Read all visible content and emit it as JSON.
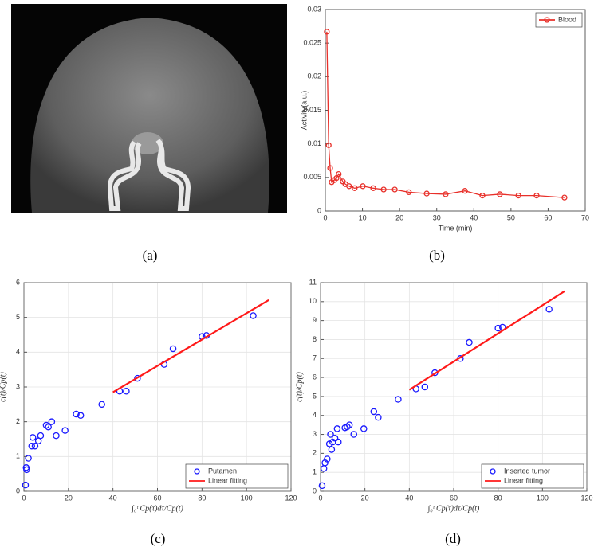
{
  "image_panel": {
    "caption": "(a)"
  },
  "chart_data": [
    {
      "type": "line",
      "caption": "(b)",
      "xlabel": "Time (min)",
      "ylabel": "Activity(a.u.)",
      "xlim": [
        0,
        70
      ],
      "xticks": [
        0,
        10,
        20,
        30,
        40,
        50,
        60,
        70
      ],
      "ylim": [
        0,
        0.03
      ],
      "yticks": [
        0,
        0.005,
        0.01,
        0.015,
        0.02,
        0.025,
        0.03
      ],
      "grid": false,
      "legend": "upper right",
      "series": [
        {
          "name": "Blood",
          "color": "#e8302a",
          "mode": "lines+markers",
          "x": [
            0.4,
            0.9,
            1.3,
            1.7,
            2.4,
            3.0,
            3.6,
            4.7,
            5.4,
            6.4,
            7.9,
            10.1,
            12.9,
            15.7,
            18.7,
            22.5,
            27.3,
            32.4,
            37.6,
            42.3,
            47,
            52,
            56.9,
            64.4
          ],
          "values": [
            0.0267,
            0.0098,
            0.0064,
            0.0043,
            0.0046,
            0.0049,
            0.0055,
            0.0044,
            0.004,
            0.0037,
            0.0034,
            0.0037,
            0.0034,
            0.0032,
            0.0032,
            0.0028,
            0.0026,
            0.0025,
            0.003,
            0.0023,
            0.0025,
            0.0023,
            0.0023,
            0.002
          ]
        }
      ]
    },
    {
      "type": "scatter",
      "caption": "(c)",
      "xlabel": "∫₀ᵗ Cp(τ)dτ/Cp(t)",
      "ylabel": "c(t)/Cp(t)",
      "xlim": [
        0,
        120
      ],
      "xticks": [
        0,
        20,
        40,
        60,
        80,
        100,
        120
      ],
      "ylim": [
        0,
        6
      ],
      "yticks": [
        0,
        1,
        2,
        3,
        4,
        5,
        6
      ],
      "grid": true,
      "legend": "lower right",
      "series": [
        {
          "name": "Putamen",
          "color": "#1a1aff",
          "mode": "markers",
          "x": [
            0.7,
            1,
            1.2,
            2,
            3.5,
            4,
            5,
            6.5,
            7.5,
            10,
            11,
            12.5,
            14.5,
            18.5,
            23.5,
            25.5,
            35,
            43,
            46,
            51,
            63,
            67,
            80,
            82,
            103
          ],
          "values": [
            0.18,
            0.68,
            0.62,
            0.95,
            1.3,
            1.55,
            1.3,
            1.45,
            1.6,
            1.9,
            1.85,
            2.0,
            1.6,
            1.75,
            2.22,
            2.18,
            2.5,
            2.88,
            2.88,
            3.25,
            3.65,
            4.1,
            4.45,
            4.48,
            5.05
          ]
        },
        {
          "name": "Linear fitting",
          "color": "#ff1a1a",
          "mode": "lines",
          "x": [
            40,
            110
          ],
          "values": [
            2.85,
            5.5
          ]
        }
      ]
    },
    {
      "type": "scatter",
      "caption": "(d)",
      "xlabel": "∫₀ᵗ Cp(τ)dτ/Cp(t)",
      "ylabel": "c(t)/Cp(t)",
      "xlim": [
        0,
        120
      ],
      "xticks": [
        0,
        20,
        40,
        60,
        80,
        100,
        120
      ],
      "ylim": [
        0,
        11
      ],
      "yticks": [
        0,
        1,
        2,
        3,
        4,
        5,
        6,
        7,
        8,
        9,
        10,
        11
      ],
      "grid": true,
      "legend": "lower right",
      "series": [
        {
          "name": "Inserted tumor",
          "color": "#1a1aff",
          "mode": "markers",
          "x": [
            0.7,
            1.5,
            2,
            3,
            4,
            4.5,
            5,
            5.5,
            6.5,
            7.5,
            8,
            11,
            12,
            13,
            15,
            19.5,
            24,
            26,
            35,
            43,
            47,
            51.5,
            63,
            67,
            80,
            82,
            103
          ],
          "values": [
            0.3,
            1.2,
            1.5,
            1.7,
            2.5,
            3.0,
            2.2,
            2.6,
            2.8,
            3.3,
            2.6,
            3.35,
            3.4,
            3.5,
            3.0,
            3.3,
            4.2,
            3.9,
            4.85,
            5.4,
            5.5,
            6.25,
            7.0,
            7.85,
            8.6,
            8.65,
            9.6
          ]
        },
        {
          "name": "Linear fitting",
          "color": "#ff1a1a",
          "mode": "lines",
          "x": [
            40,
            110
          ],
          "values": [
            5.35,
            10.55
          ]
        }
      ]
    }
  ]
}
